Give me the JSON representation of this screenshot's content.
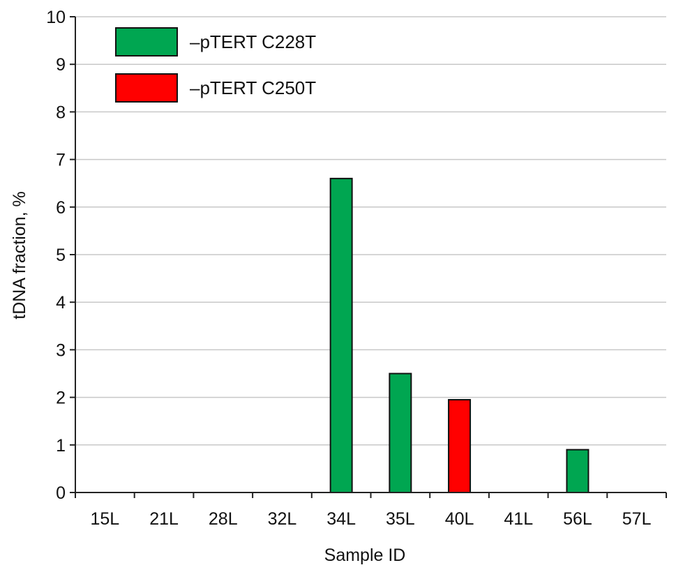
{
  "chart_data": {
    "type": "bar",
    "title": "",
    "xlabel": "Sample ID",
    "ylabel": "tDNA fraction, %",
    "ylim": [
      0,
      10
    ],
    "yticks": [
      "0",
      "1",
      "2",
      "3",
      "4",
      "5",
      "6",
      "7",
      "8",
      "9",
      "10"
    ],
    "grid": true,
    "legend_position": "top-left",
    "categories": [
      "15L",
      "21L",
      "28L",
      "32L",
      "34L",
      "35L",
      "40L",
      "41L",
      "56L",
      "57L"
    ],
    "series": [
      {
        "name": "–pTERT C228T",
        "color": "#00a651",
        "values": [
          0,
          0,
          0,
          0,
          6.6,
          2.5,
          0,
          0,
          0.9,
          0
        ]
      },
      {
        "name": "–pTERT C250T",
        "color": "#ff0000",
        "values": [
          0,
          0,
          0,
          0,
          0,
          0,
          1.95,
          0,
          0,
          0
        ]
      }
    ]
  }
}
